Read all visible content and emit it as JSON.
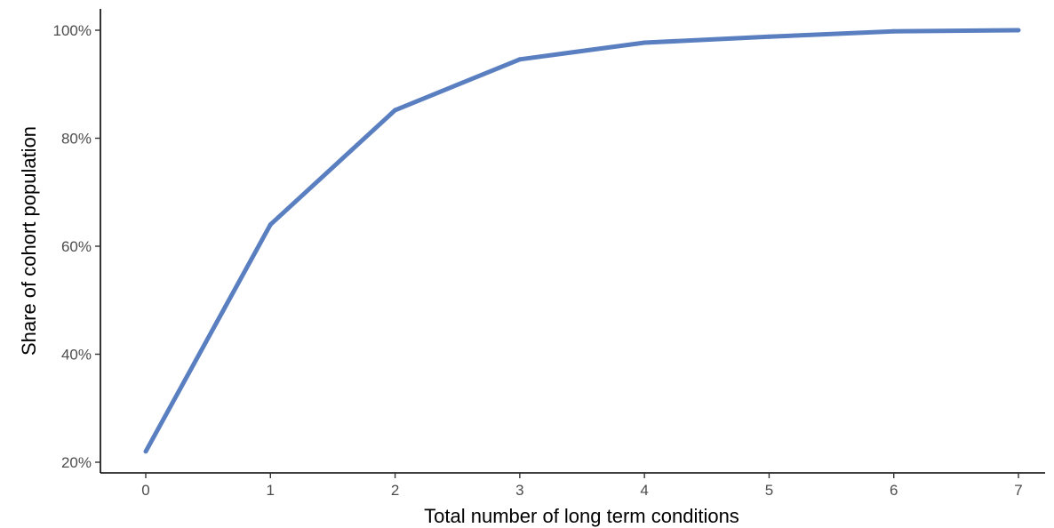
{
  "chart_data": {
    "type": "line",
    "title": "",
    "xlabel": "Total number of long term conditions",
    "ylabel": "Share of cohort population",
    "x": [
      0,
      1,
      2,
      3,
      4,
      5,
      6,
      7
    ],
    "series": [
      {
        "values": [
          0.22,
          0.64,
          0.852,
          0.946,
          0.977,
          0.988,
          0.998,
          1.0
        ],
        "color": "#5a7fc0"
      }
    ],
    "xlim": [
      0,
      7
    ],
    "ylim": [
      0.2,
      1.0
    ],
    "x_ticks": [
      0,
      1,
      2,
      3,
      4,
      5,
      6,
      7
    ],
    "x_tick_labels": [
      "0",
      "1",
      "2",
      "3",
      "4",
      "5",
      "6",
      "7"
    ],
    "y_ticks": [
      0.2,
      0.4,
      0.6,
      0.8,
      1.0
    ],
    "y_tick_labels": [
      "20%",
      "40%",
      "60%",
      "80%",
      "100%"
    ],
    "grid": false,
    "legend": "none"
  }
}
